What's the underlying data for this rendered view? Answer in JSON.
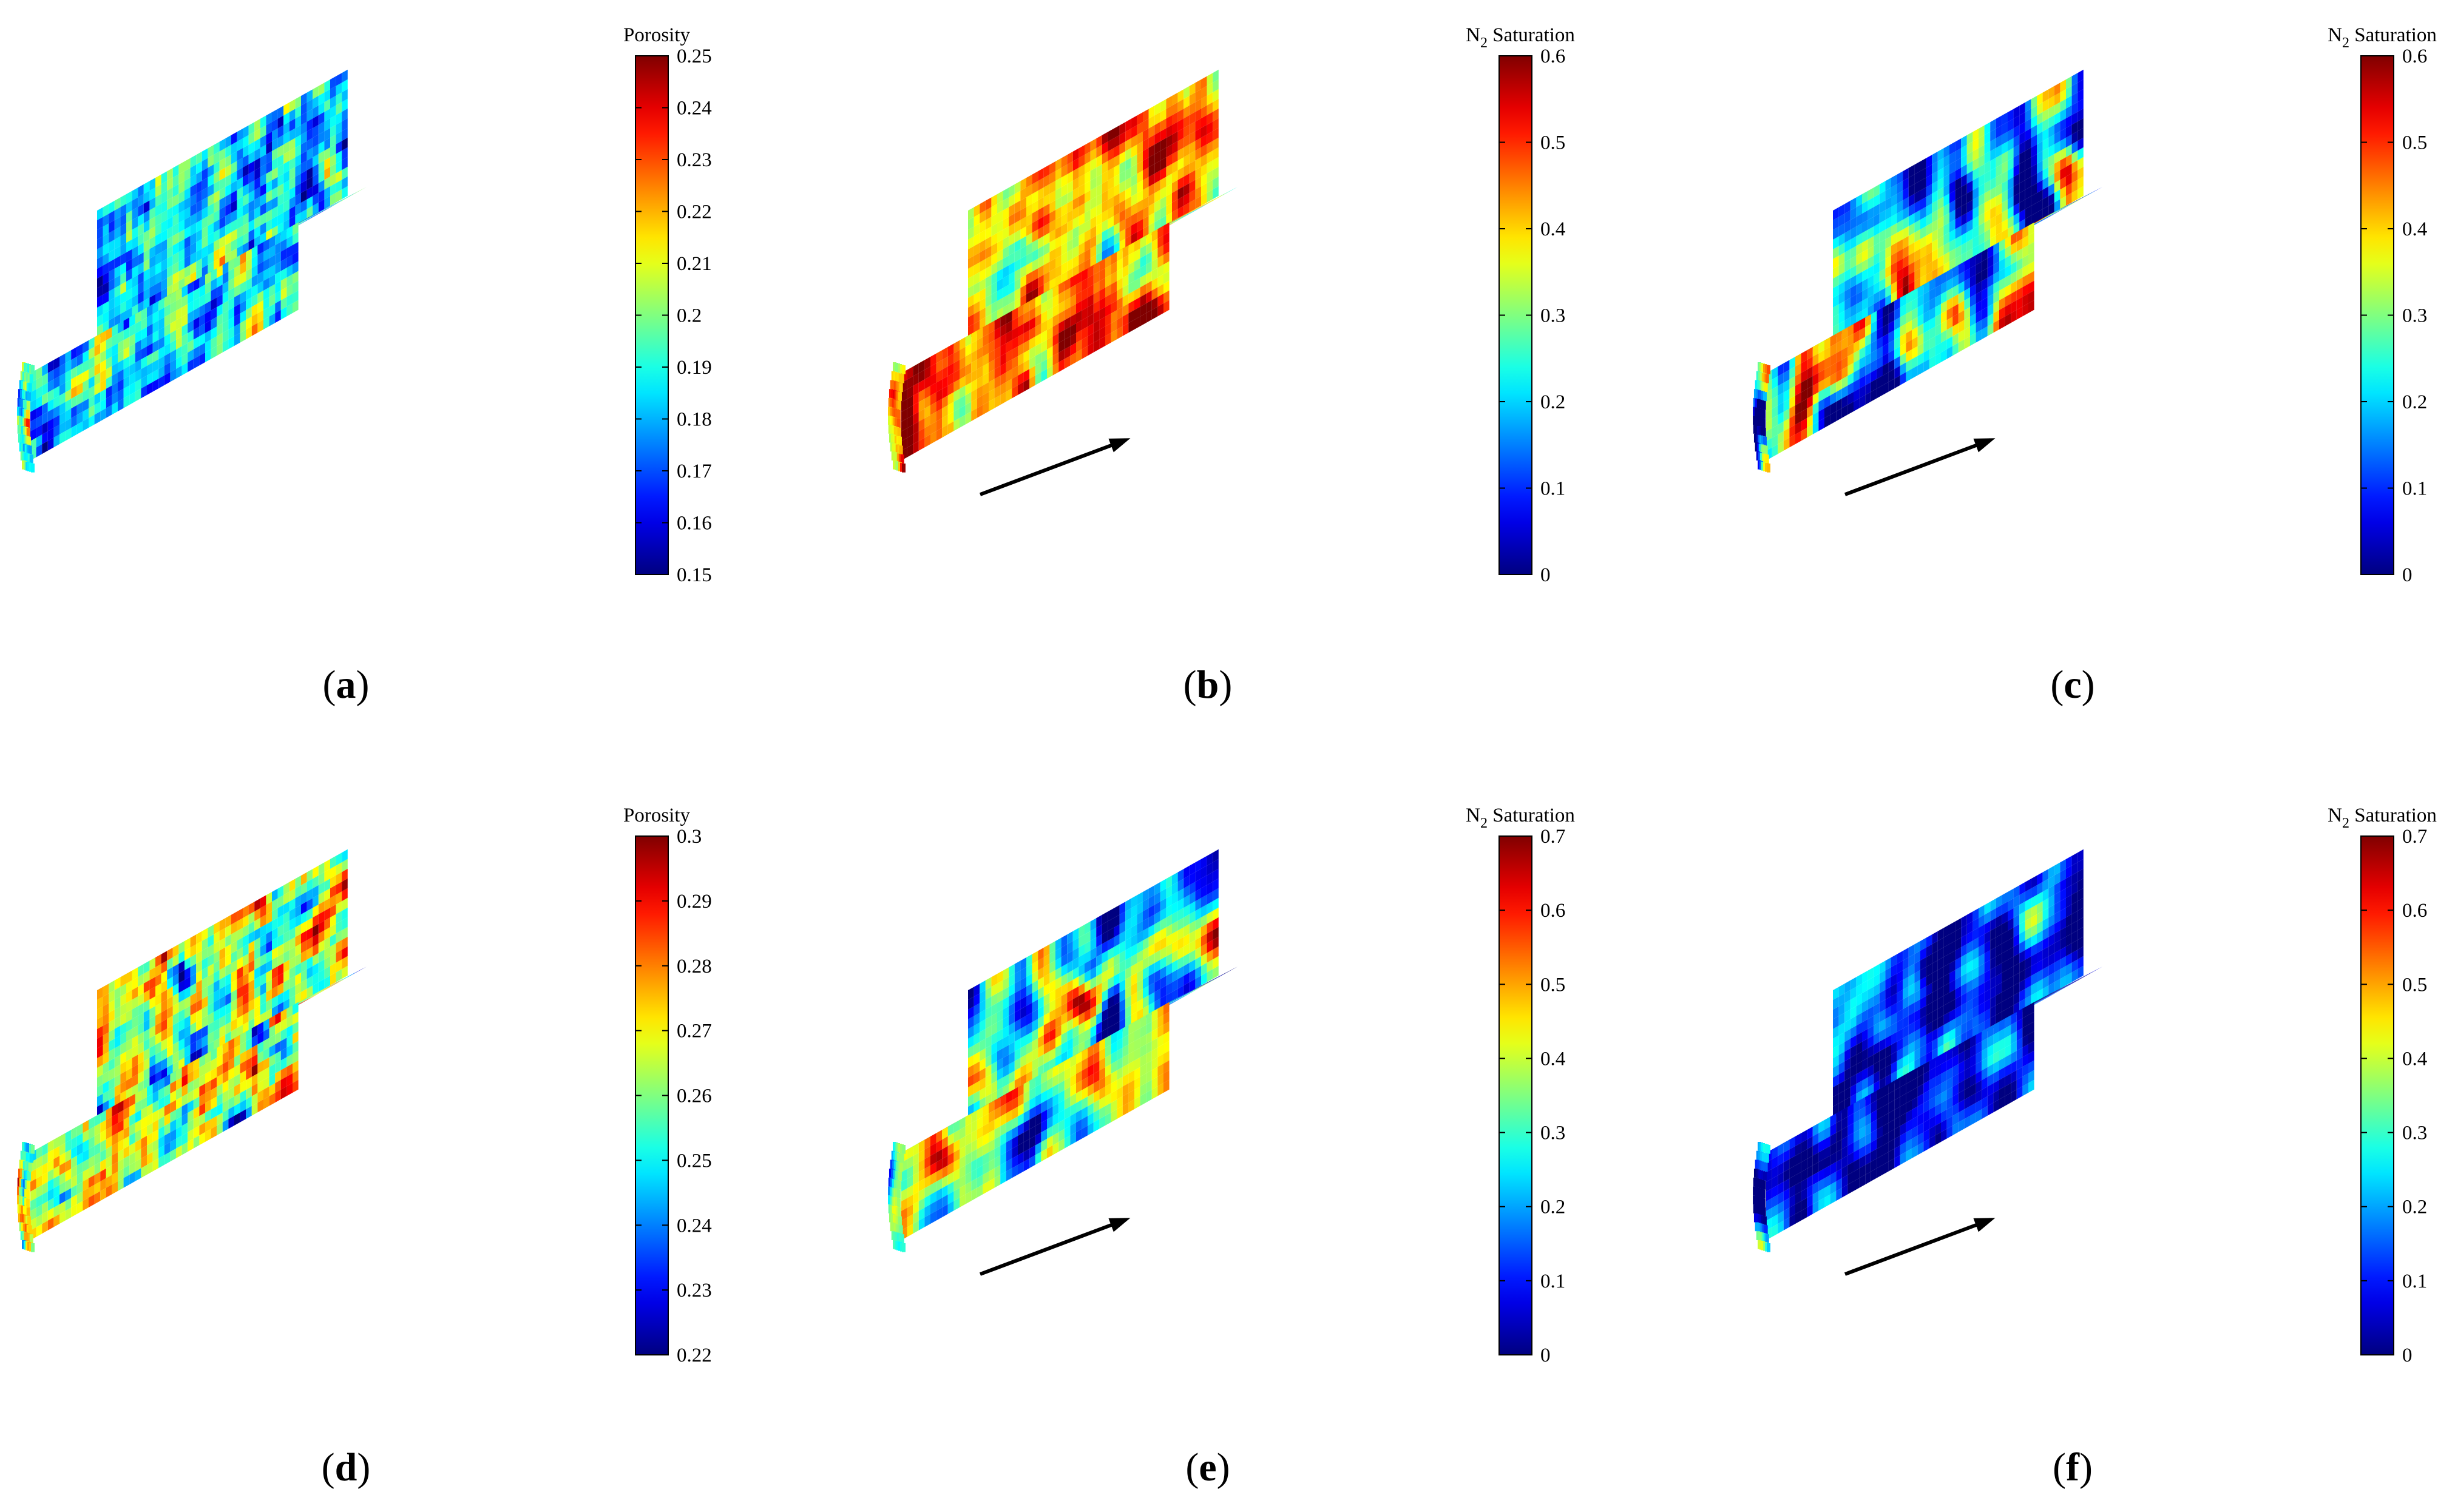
{
  "panels": [
    {
      "id": "a",
      "caption": "a",
      "quantity": "porosity",
      "colorbar": {
        "title": "Porosity",
        "subscript": "",
        "title_rest": "",
        "min": 0.15,
        "max": 0.25,
        "ticks": [
          "0.25",
          "0.24",
          "0.23",
          "0.22",
          "0.21",
          "0.2",
          "0.19",
          "0.18",
          "0.17",
          "0.16",
          "0.15"
        ]
      },
      "voxel_field": {
        "mean": 0.186,
        "spread": 0.026,
        "smoothness": 0.15
      },
      "flow_arrow": false
    },
    {
      "id": "b",
      "caption": "b",
      "quantity": "n2-saturation",
      "colorbar": {
        "title": "N",
        "subscript": "2",
        "title_rest": " Saturation",
        "min": 0,
        "max": 0.6,
        "ticks": [
          "0.6",
          "0.5",
          "0.4",
          "0.3",
          "0.2",
          "0.1",
          "0"
        ]
      },
      "voxel_field": {
        "mean": 0.43,
        "spread": 0.13,
        "smoothness": 0.6
      },
      "flow_arrow": true
    },
    {
      "id": "c",
      "caption": "c",
      "quantity": "n2-saturation",
      "colorbar": {
        "title": "N",
        "subscript": "2",
        "title_rest": " Saturation",
        "min": 0,
        "max": 0.6,
        "ticks": [
          "0.6",
          "0.5",
          "0.4",
          "0.3",
          "0.2",
          "0.1",
          "0"
        ]
      },
      "voxel_field": {
        "mean": 0.22,
        "spread": 0.16,
        "smoothness": 0.65
      },
      "flow_arrow": true
    },
    {
      "id": "d",
      "caption": "d",
      "quantity": "porosity",
      "colorbar": {
        "title": "Porosity",
        "subscript": "",
        "title_rest": "",
        "min": 0.22,
        "max": 0.3,
        "ticks": [
          "0.3",
          "0.29",
          "0.28",
          "0.27",
          "0.26",
          "0.25",
          "0.24",
          "0.23",
          "0.22"
        ]
      },
      "voxel_field": {
        "mean": 0.266,
        "spread": 0.022,
        "smoothness": 0.25
      },
      "flow_arrow": false
    },
    {
      "id": "e",
      "caption": "e",
      "quantity": "n2-saturation",
      "colorbar": {
        "title": "N",
        "subscript": "2",
        "title_rest": " Saturation",
        "min": 0,
        "max": 0.7,
        "ticks": [
          "0.7",
          "0.6",
          "0.5",
          "0.4",
          "0.3",
          "0.2",
          "0.1",
          "0"
        ]
      },
      "voxel_field": {
        "mean": 0.32,
        "spread": 0.17,
        "smoothness": 0.7
      },
      "flow_arrow": true
    },
    {
      "id": "f",
      "caption": "f",
      "quantity": "n2-saturation",
      "colorbar": {
        "title": "N",
        "subscript": "2",
        "title_rest": " Saturation",
        "min": 0,
        "max": 0.7,
        "ticks": [
          "0.7",
          "0.6",
          "0.5",
          "0.4",
          "0.3",
          "0.2",
          "0.1",
          "0"
        ]
      },
      "voxel_field": {
        "mean": 0.08,
        "spread": 0.13,
        "smoothness": 0.7
      },
      "flow_arrow": true
    }
  ],
  "colormap": "jet",
  "colors": {
    "arrow": "#000000",
    "axis": "#000000",
    "background": "#ffffff"
  },
  "chart_data": {
    "type": "heatmap",
    "layout": "2x3 grid",
    "panels": [
      {
        "id": "a",
        "quantity": "Porosity",
        "range": [
          0.15,
          0.25
        ]
      },
      {
        "id": "b",
        "quantity": "N2 Saturation",
        "range": [
          0,
          0.6
        ]
      },
      {
        "id": "c",
        "quantity": "N2 Saturation",
        "range": [
          0,
          0.6
        ]
      },
      {
        "id": "d",
        "quantity": "Porosity",
        "range": [
          0.22,
          0.3
        ]
      },
      {
        "id": "e",
        "quantity": "N2 Saturation",
        "range": [
          0,
          0.7
        ]
      },
      {
        "id": "f",
        "quantity": "N2 Saturation",
        "range": [
          0,
          0.7
        ]
      }
    ]
  }
}
